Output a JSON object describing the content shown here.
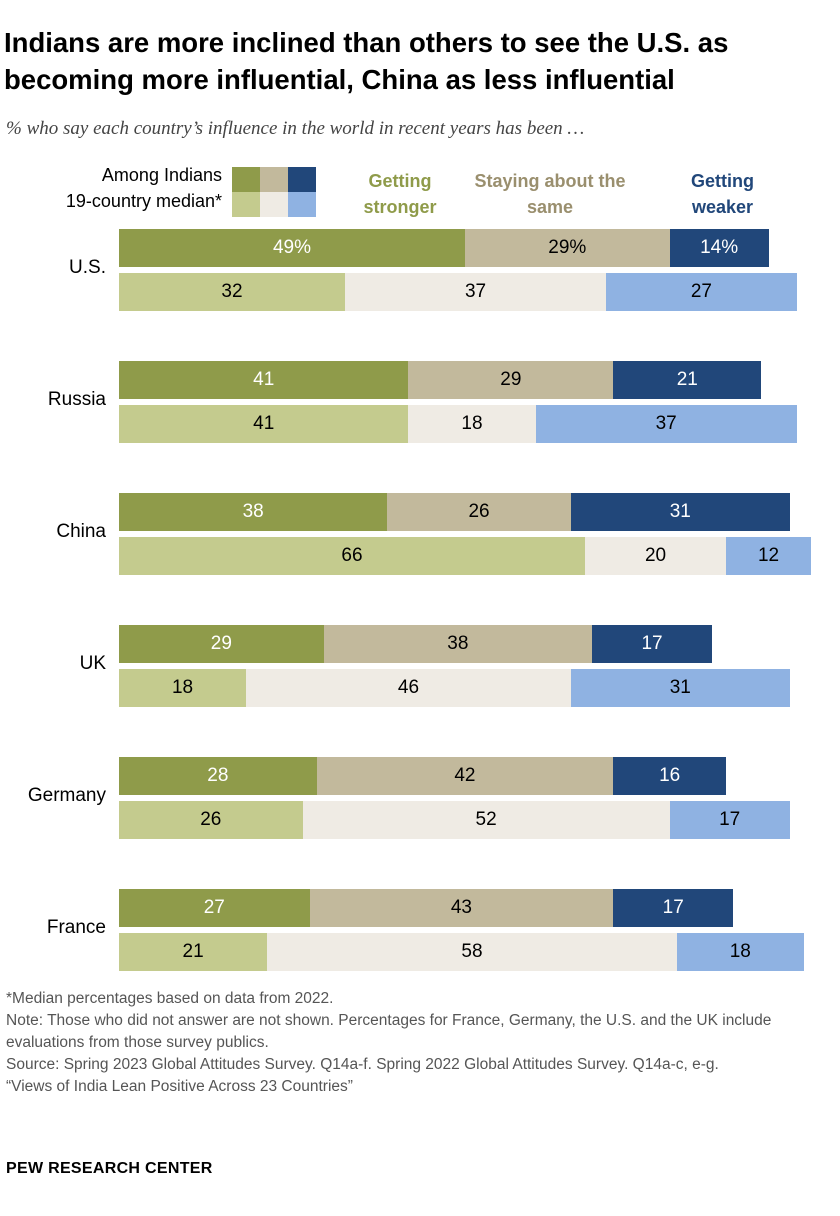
{
  "chart_data": {
    "type": "bar",
    "orientation": "horizontal-stacked",
    "title": "Indians are more inclined than others to see the U.S. as becoming more influential, China as less influential",
    "subtitle": "% who say each country’s influence in the world in recent years has been …",
    "legend": {
      "rows": [
        "Among Indians",
        "19-country median*"
      ]
    },
    "columns": [
      "Getting stronger",
      "Staying about the same",
      "Getting weaker"
    ],
    "colors": {
      "indians": [
        "#8f9b4a",
        "#c2b99c",
        "#21477a"
      ],
      "median": [
        "#c4cb8e",
        "#efebe4",
        "#8fb2e2"
      ]
    },
    "categories": [
      "U.S.",
      "Russia",
      "China",
      "UK",
      "Germany",
      "France"
    ],
    "series": [
      {
        "name": "Among Indians",
        "values": [
          [
            49,
            29,
            14
          ],
          [
            41,
            29,
            21
          ],
          [
            38,
            26,
            31
          ],
          [
            29,
            38,
            17
          ],
          [
            28,
            42,
            16
          ],
          [
            27,
            43,
            17
          ]
        ]
      },
      {
        "name": "19-country median*",
        "values": [
          [
            32,
            37,
            27
          ],
          [
            41,
            18,
            37
          ],
          [
            66,
            20,
            12
          ],
          [
            18,
            46,
            31
          ],
          [
            26,
            52,
            17
          ],
          [
            21,
            58,
            18
          ]
        ]
      }
    ],
    "first_label_suffix": "%"
  },
  "notes": [
    "*Median percentages based on data from 2022.",
    "Note: Those who did not answer are not shown. Percentages for France, Germany, the U.S. and the UK include evaluations from those survey publics.",
    "Source: Spring 2023 Global Attitudes Survey. Q14a-f. Spring 2022 Global Attitudes Survey. Q14a-c, e-g.",
    "“Views of India Lean Positive Across 23 Countries”"
  ],
  "brand": "PEW RESEARCH CENTER"
}
